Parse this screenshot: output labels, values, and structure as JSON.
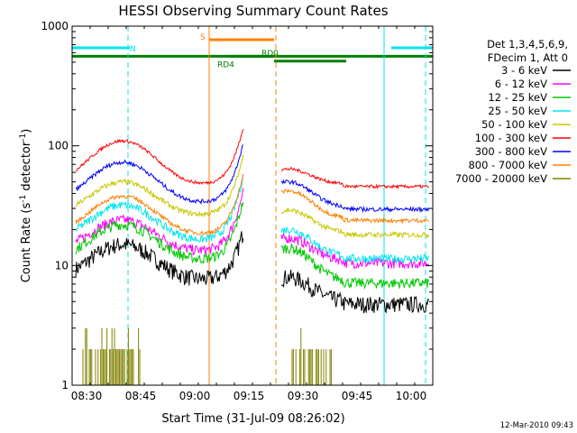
{
  "chart_data": {
    "type": "line",
    "title": "HESSI Observing Summary Count Rates",
    "xlabel": "Start Time (31-Jul-09 08:26:02)",
    "ylabel_main": "Count Rate (s",
    "ylabel_sup1": "-1",
    "ylabel_mid": " detector",
    "ylabel_sup2": "-1",
    "ylabel_end": ")",
    "footer_date": "12-Mar-2010 09:43",
    "yscale": "log",
    "ylim": [
      1,
      1000
    ],
    "xlim_minutes": [
      0,
      100
    ],
    "x_ticks": [
      {
        "m": 4,
        "label": "08:30"
      },
      {
        "m": 19,
        "label": "08:45"
      },
      {
        "m": 34,
        "label": "09:00"
      },
      {
        "m": 49,
        "label": "09:15"
      },
      {
        "m": 64,
        "label": "09:30"
      },
      {
        "m": 79,
        "label": "09:45"
      },
      {
        "m": 94,
        "label": "10:00"
      }
    ],
    "y_ticks": [
      {
        "v": 1,
        "label": "1"
      },
      {
        "v": 10,
        "label": "10"
      },
      {
        "v": 100,
        "label": "100"
      },
      {
        "v": 1000,
        "label": "1000"
      }
    ],
    "legend": {
      "header": [
        "Det 1,3,4,5,6,9,",
        "FDecim 1, Att 0"
      ],
      "placement": "right"
    },
    "flags": [
      {
        "label": "N",
        "color": "#00e5ee",
        "x0": 0,
        "x1": 16,
        "y": 660
      },
      {
        "label": "",
        "color": "#00e5ee",
        "x0": 88.5,
        "x1": 100,
        "y": 660
      },
      {
        "label": "S",
        "color": "#ff8000",
        "x0": 38,
        "x1": 56,
        "y": 770
      },
      {
        "label": "",
        "color": "#008000",
        "x0": 0,
        "x1": 100,
        "y": 560
      },
      {
        "label": "RD4",
        "color": "#008000",
        "x0": 44,
        "x1": 56,
        "y": 560
      },
      {
        "label": "RD0",
        "color": "#008000",
        "x0": 56,
        "x1": 76,
        "y": 510
      }
    ],
    "vlines": [
      {
        "m": 15.5,
        "color": "#00e5ee",
        "dash": true
      },
      {
        "m": 38,
        "color": "#ff8000",
        "dash": false
      },
      {
        "m": 56.5,
        "color": "#ff8000",
        "dash": true
      },
      {
        "m": 86.5,
        "color": "#00e5ee",
        "dash": false
      },
      {
        "m": 98,
        "color": "#00e5ee",
        "dash": true
      }
    ],
    "segments": [
      {
        "start": 1,
        "end": 47.5
      },
      {
        "start": 58,
        "end": 99
      }
    ],
    "series": [
      {
        "name": "3 - 6 keV",
        "color": "#000000",
        "peak": 15,
        "base": 7.5,
        "rise": 2.0,
        "post": 8,
        "late": 5,
        "noise": 0.16
      },
      {
        "name": "6 - 12 keV",
        "color": "#ff00ff",
        "peak": 24,
        "base": 13,
        "rise": 2.4,
        "post": 17,
        "late": 11,
        "noise": 0.1
      },
      {
        "name": "12 - 25 keV",
        "color": "#00c800",
        "peak": 22,
        "base": 11,
        "rise": 2.4,
        "post": 14,
        "late": 7.5,
        "noise": 0.1
      },
      {
        "name": "25 - 50 keV",
        "color": "#00e5ee",
        "peak": 32,
        "base": 16,
        "rise": 2.6,
        "post": 20,
        "late": 12,
        "noise": 0.08
      },
      {
        "name": "50 - 100 keV",
        "color": "#c8c800",
        "peak": 50,
        "base": 26,
        "rise": 2.4,
        "post": 29,
        "late": 19,
        "noise": 0.05
      },
      {
        "name": "100 - 300 keV",
        "color": "#ff0000",
        "peak": 110,
        "base": 47,
        "rise": 2.3,
        "post": 64,
        "late": 48,
        "noise": 0.03
      },
      {
        "name": "300 - 800 keV",
        "color": "#0000ff",
        "peak": 73,
        "base": 33,
        "rise": 2.4,
        "post": 50,
        "late": 31,
        "noise": 0.04
      },
      {
        "name": "800 - 7000 keV",
        "color": "#ff8000",
        "peak": 38,
        "base": 18,
        "rise": 2.4,
        "post": 42,
        "late": 25,
        "noise": 0.04
      },
      {
        "name": "7000 - 20000 keV",
        "color": "#808000",
        "peak": 2,
        "base": 1,
        "rise": 1,
        "post": 2,
        "late": 1,
        "noise": 0,
        "ranges": [
          [
            3,
            19
          ],
          [
            61,
            72
          ]
        ]
      }
    ]
  }
}
